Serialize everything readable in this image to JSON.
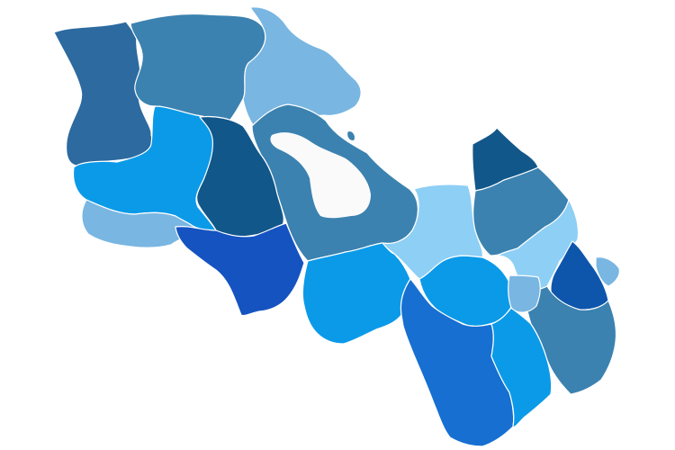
{
  "map": {
    "background": "#ffffff",
    "regions": [
      {
        "id": "northwest",
        "color": "#2c6aa0"
      },
      {
        "id": "north-central",
        "color": "#3b82b0"
      },
      {
        "id": "north",
        "color": "#79b6e2"
      },
      {
        "id": "west-central",
        "color": "#0b9ae8"
      },
      {
        "id": "central-dark",
        "color": "#12578a"
      },
      {
        "id": "southwest",
        "color": "#79b6e2"
      },
      {
        "id": "south-central",
        "color": "#1553c1"
      },
      {
        "id": "lake-shore",
        "color": "#3b82b0"
      },
      {
        "id": "east-central",
        "color": "#8ecff5"
      },
      {
        "id": "south-middle",
        "color": "#0b9ae8"
      },
      {
        "id": "northeast-tip",
        "color": "#12578a"
      },
      {
        "id": "east",
        "color": "#3b82b0"
      },
      {
        "id": "east-light",
        "color": "#8ecff5"
      },
      {
        "id": "east-deep",
        "color": "#0d56ac"
      },
      {
        "id": "east-islet",
        "color": "#79b6e2"
      },
      {
        "id": "southeast-upper",
        "color": "#0b9ae8"
      },
      {
        "id": "south",
        "color": "#166fd1"
      },
      {
        "id": "south-light-band",
        "color": "#0b9ae8"
      },
      {
        "id": "southeast",
        "color": "#3b82b0"
      },
      {
        "id": "small-pocket",
        "color": "#79b6e2"
      },
      {
        "id": "exclave",
        "color": "#3b82b0"
      }
    ],
    "lake": {
      "color": "#fafafa"
    }
  }
}
